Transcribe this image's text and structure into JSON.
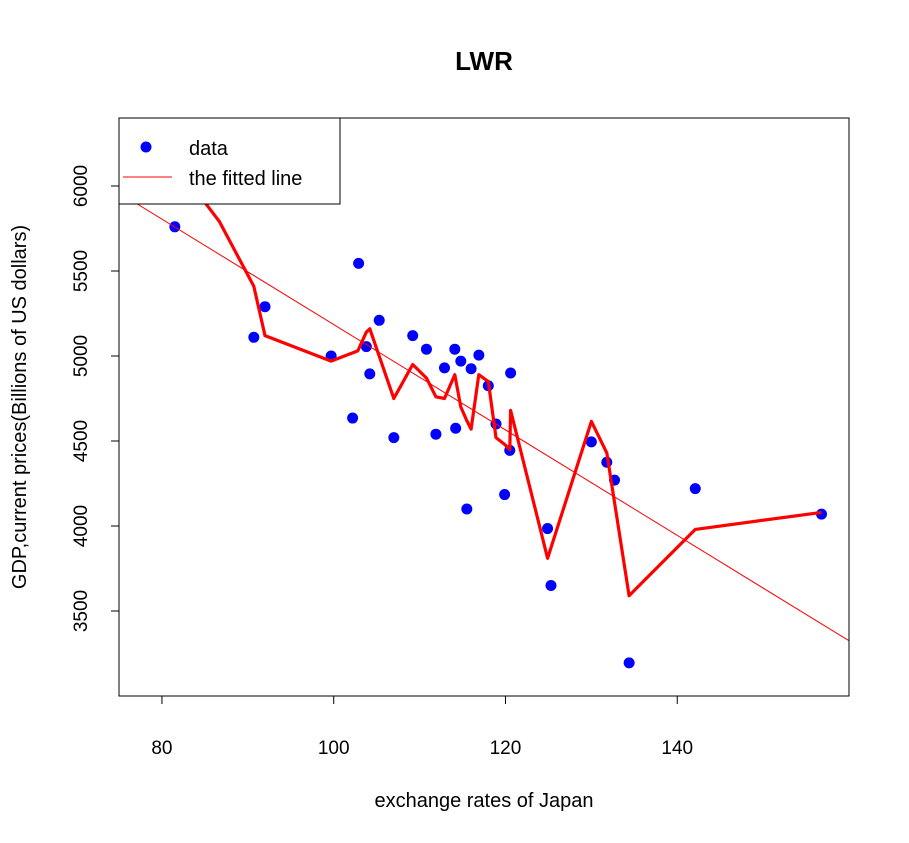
{
  "chart_data": {
    "type": "scatter",
    "title": "LWR",
    "xlabel": "exchange rates of Japan",
    "ylabel": "GDP,current prices(Billions of US dollars)",
    "xlim": [
      75,
      160
    ],
    "ylim": [
      3000,
      6400
    ],
    "x_ticks": [
      80,
      100,
      120,
      140
    ],
    "y_ticks": [
      3500,
      4000,
      4500,
      5000,
      5500,
      6000
    ],
    "grid": false,
    "legend_position": "top-left",
    "colors": {
      "data": "#0000ff",
      "fitted_line": "#ff0000",
      "lwr": "#ff0000"
    },
    "series": [
      {
        "name": "data",
        "style": "points",
        "points": [
          [
            81.5,
            5760
          ],
          [
            90.7,
            5110
          ],
          [
            92.0,
            5290
          ],
          [
            99.7,
            5000
          ],
          [
            102.2,
            4635
          ],
          [
            102.9,
            5545
          ],
          [
            103.8,
            5055
          ],
          [
            104.2,
            4895
          ],
          [
            105.3,
            5210
          ],
          [
            107.0,
            4520
          ],
          [
            109.2,
            5120
          ],
          [
            110.8,
            5040
          ],
          [
            111.9,
            4540
          ],
          [
            112.9,
            4930
          ],
          [
            114.1,
            5040
          ],
          [
            114.2,
            4575
          ],
          [
            114.8,
            4970
          ],
          [
            115.5,
            4100
          ],
          [
            116.0,
            4925
          ],
          [
            116.9,
            5005
          ],
          [
            118.0,
            4825
          ],
          [
            118.9,
            4600
          ],
          [
            119.9,
            4185
          ],
          [
            120.5,
            4445
          ],
          [
            120.6,
            4900
          ],
          [
            124.9,
            3985
          ],
          [
            125.3,
            3650
          ],
          [
            130.0,
            4495
          ],
          [
            131.8,
            4375
          ],
          [
            132.7,
            4270
          ],
          [
            134.4,
            3195
          ],
          [
            142.1,
            4220
          ],
          [
            156.8,
            4070
          ]
        ]
      },
      {
        "name": "the fitted line",
        "style": "thin-line",
        "points": [
          [
            75,
            5960
          ],
          [
            160,
            3325
          ]
        ]
      },
      {
        "style": "thick-line",
        "points": [
          [
            76.0,
            6500
          ],
          [
            84.0,
            5970
          ],
          [
            86.7,
            5790
          ],
          [
            90.7,
            5410
          ],
          [
            92.0,
            5120
          ],
          [
            99.7,
            4970
          ],
          [
            102.8,
            5030
          ],
          [
            103.8,
            5140
          ],
          [
            104.2,
            5160
          ],
          [
            107.0,
            4750
          ],
          [
            109.2,
            4950
          ],
          [
            110.8,
            4870
          ],
          [
            111.9,
            4760
          ],
          [
            112.9,
            4750
          ],
          [
            114.1,
            4890
          ],
          [
            114.8,
            4700
          ],
          [
            115.5,
            4620
          ],
          [
            116.0,
            4570
          ],
          [
            116.9,
            4890
          ],
          [
            118.0,
            4850
          ],
          [
            118.9,
            4520
          ],
          [
            119.9,
            4480
          ],
          [
            120.5,
            4450
          ],
          [
            120.6,
            4680
          ],
          [
            124.9,
            3810
          ],
          [
            130.0,
            4615
          ],
          [
            131.8,
            4430
          ],
          [
            134.4,
            3590
          ],
          [
            142.1,
            3980
          ],
          [
            156.8,
            4080
          ]
        ]
      }
    ]
  }
}
